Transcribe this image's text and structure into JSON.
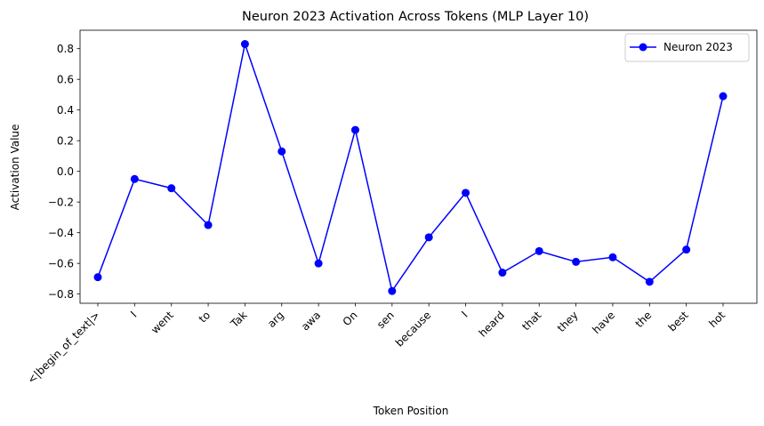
{
  "chart_data": {
    "type": "line",
    "title": "Neuron 2023 Activation Across Tokens (MLP Layer 10)",
    "xlabel": "Token Position",
    "ylabel": "Activation Value",
    "categories": [
      "<|begin_of_text|>",
      "I",
      "went",
      "to",
      "Tak",
      "arg",
      "awa",
      "On",
      "sen",
      "because",
      "I",
      "heard",
      "that",
      "they",
      "have",
      "the",
      "best",
      "hot"
    ],
    "series": [
      {
        "name": "Neuron 2023",
        "color": "#0000ff",
        "marker": "circle",
        "values": [
          -0.69,
          -0.05,
          -0.11,
          -0.35,
          0.83,
          0.13,
          -0.6,
          0.27,
          -0.78,
          -0.43,
          -0.14,
          -0.66,
          -0.52,
          -0.59,
          -0.56,
          -0.72,
          -0.51,
          0.49
        ]
      }
    ],
    "ylim": [
      -0.86,
      0.92
    ],
    "yticks": [
      -0.8,
      -0.6,
      -0.4,
      -0.2,
      0.0,
      0.2,
      0.4,
      0.6,
      0.8
    ],
    "ytick_labels": [
      "−0.8",
      "−0.6",
      "−0.4",
      "−0.2",
      "0.0",
      "0.2",
      "0.4",
      "0.6",
      "0.8"
    ],
    "grid": false,
    "legend_position": "top-right"
  }
}
